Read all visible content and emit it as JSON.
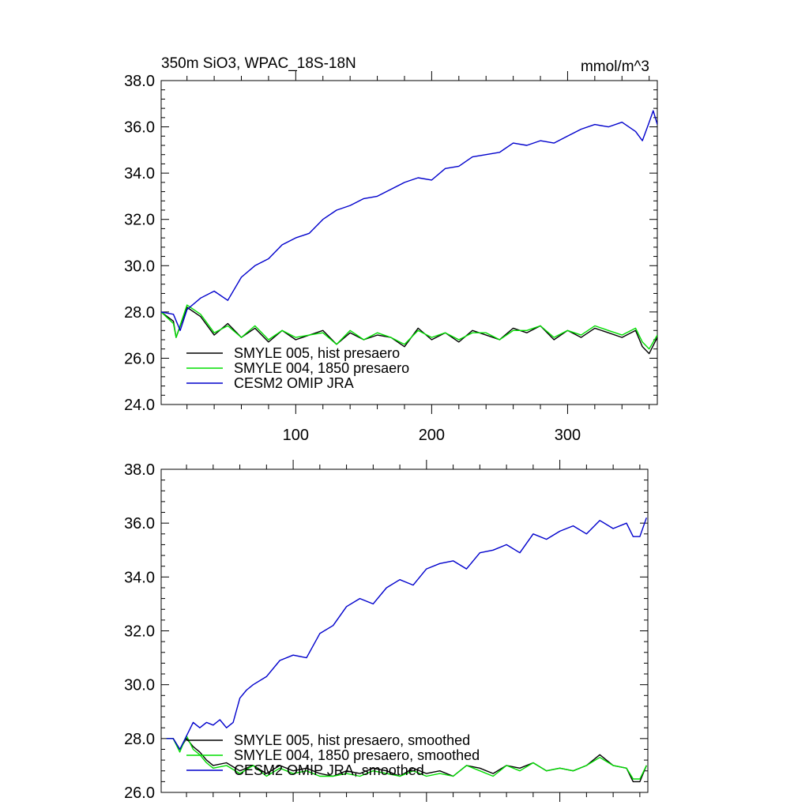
{
  "chart_data": [
    {
      "type": "line",
      "title": "350m SiO3, WPAC_18S-18N",
      "units": "mmol/m^3",
      "xlim": [
        1,
        366
      ],
      "ylim": [
        24,
        38
      ],
      "xticks": [
        100,
        200,
        300
      ],
      "xtick_labels": [
        "100",
        "200",
        "300"
      ],
      "yticks": [
        24,
        26,
        28,
        30,
        32,
        34,
        36,
        38
      ],
      "ytick_labels": [
        "24.0",
        "26.0",
        "28.0",
        "30.0",
        "32.0",
        "34.0",
        "36.0",
        "38.0"
      ],
      "grid": false,
      "legend_position": "bottom-left",
      "series": [
        {
          "name": "SMYLE 005, hist presaero",
          "color": "#000000",
          "x": [
            1,
            10,
            12,
            20,
            30,
            40,
            50,
            60,
            70,
            80,
            90,
            100,
            110,
            120,
            130,
            140,
            150,
            160,
            170,
            180,
            190,
            200,
            210,
            220,
            230,
            240,
            250,
            260,
            270,
            280,
            290,
            300,
            310,
            320,
            330,
            340,
            350,
            355,
            360,
            366
          ],
          "y": [
            28.0,
            27.6,
            26.9,
            28.2,
            27.8,
            27.0,
            27.5,
            26.9,
            27.3,
            26.7,
            27.2,
            26.8,
            27.0,
            27.2,
            26.6,
            27.1,
            26.8,
            27.0,
            26.9,
            26.5,
            27.3,
            26.8,
            27.1,
            26.7,
            27.2,
            27.0,
            26.8,
            27.3,
            27.1,
            27.4,
            26.8,
            27.2,
            26.9,
            27.3,
            27.1,
            26.9,
            27.2,
            26.5,
            26.2,
            26.9
          ]
        },
        {
          "name": "SMYLE 004, 1850 presaero",
          "color": "#00dd00",
          "x": [
            1,
            10,
            12,
            20,
            30,
            40,
            50,
            60,
            70,
            80,
            90,
            100,
            110,
            120,
            130,
            140,
            150,
            160,
            170,
            180,
            190,
            200,
            210,
            220,
            230,
            240,
            250,
            260,
            270,
            280,
            290,
            300,
            310,
            320,
            330,
            340,
            350,
            355,
            360,
            366
          ],
          "y": [
            28.0,
            27.5,
            26.9,
            28.3,
            27.9,
            27.1,
            27.4,
            26.9,
            27.4,
            26.8,
            27.2,
            26.9,
            27.0,
            27.1,
            26.6,
            27.2,
            26.8,
            27.1,
            26.9,
            26.6,
            27.2,
            26.9,
            27.1,
            26.8,
            27.1,
            27.1,
            26.8,
            27.2,
            27.2,
            27.4,
            26.9,
            27.2,
            27.0,
            27.4,
            27.2,
            27.0,
            27.3,
            26.7,
            26.4,
            27.0
          ]
        },
        {
          "name": "CESM2 OMIP JRA",
          "color": "#0000cc",
          "x": [
            1,
            10,
            15,
            20,
            30,
            40,
            50,
            60,
            70,
            80,
            90,
            100,
            110,
            120,
            130,
            140,
            150,
            160,
            170,
            180,
            190,
            200,
            210,
            220,
            230,
            240,
            250,
            260,
            270,
            280,
            290,
            300,
            310,
            320,
            330,
            340,
            350,
            355,
            360,
            363,
            366
          ],
          "y": [
            28.0,
            27.9,
            27.2,
            28.1,
            28.6,
            28.9,
            28.5,
            29.5,
            30.0,
            30.3,
            30.9,
            31.2,
            31.4,
            32.0,
            32.4,
            32.6,
            32.9,
            33.0,
            33.3,
            33.6,
            33.8,
            33.7,
            34.2,
            34.3,
            34.7,
            34.8,
            34.9,
            35.3,
            35.2,
            35.4,
            35.3,
            35.6,
            35.9,
            36.1,
            36.0,
            36.2,
            35.8,
            35.4,
            36.2,
            36.7,
            36.1
          ]
        }
      ]
    },
    {
      "type": "line",
      "xlim": [
        1,
        366
      ],
      "ylim": [
        26,
        38
      ],
      "xticks": [
        100,
        200,
        300
      ],
      "yticks": [
        26,
        28,
        30,
        32,
        34,
        36,
        38
      ],
      "ytick_labels": [
        "26.0",
        "28.0",
        "30.0",
        "32.0",
        "34.0",
        "36.0",
        "38.0"
      ],
      "grid": false,
      "legend_position": "bottom-left",
      "series": [
        {
          "name": "SMYLE 005, hist presaero, smoothed",
          "color": "#000000",
          "x": [
            5,
            10,
            15,
            20,
            25,
            30,
            35,
            40,
            50,
            60,
            70,
            80,
            90,
            100,
            110,
            120,
            130,
            140,
            150,
            160,
            170,
            180,
            190,
            200,
            210,
            220,
            230,
            240,
            250,
            260,
            270,
            280,
            290,
            300,
            310,
            320,
            330,
            340,
            350,
            355,
            360,
            365
          ],
          "y": [
            28.0,
            28.0,
            27.6,
            28.0,
            27.7,
            27.5,
            27.2,
            27.0,
            27.1,
            26.8,
            27.0,
            26.7,
            27.0,
            26.8,
            26.9,
            26.7,
            26.6,
            26.8,
            26.7,
            26.9,
            26.8,
            26.6,
            26.9,
            26.7,
            26.8,
            26.6,
            27.0,
            26.9,
            26.7,
            27.0,
            26.9,
            27.1,
            26.8,
            26.9,
            26.8,
            27.0,
            27.4,
            27.0,
            26.9,
            26.4,
            26.4,
            27.0
          ]
        },
        {
          "name": "SMYLE 004, 1850 presaero, smoothed",
          "color": "#00dd00",
          "x": [
            5,
            10,
            15,
            20,
            25,
            30,
            35,
            40,
            50,
            60,
            70,
            80,
            90,
            100,
            110,
            120,
            130,
            140,
            150,
            160,
            170,
            180,
            190,
            200,
            210,
            220,
            230,
            240,
            250,
            260,
            270,
            280,
            290,
            300,
            310,
            320,
            330,
            340,
            350,
            355,
            360,
            365
          ],
          "y": [
            28.0,
            28.0,
            27.5,
            28.1,
            27.6,
            27.4,
            27.1,
            26.9,
            27.0,
            26.7,
            27.0,
            26.6,
            26.9,
            26.7,
            26.8,
            26.6,
            26.6,
            26.7,
            26.6,
            26.8,
            26.7,
            26.6,
            26.8,
            26.6,
            26.7,
            26.6,
            27.0,
            26.8,
            26.6,
            27.0,
            26.8,
            27.1,
            26.8,
            26.9,
            26.8,
            27.0,
            27.3,
            27.0,
            26.9,
            26.5,
            26.5,
            27.0
          ]
        },
        {
          "name": "CESM2 OMIP JRA, smoothed",
          "color": "#0000cc",
          "x": [
            5,
            10,
            15,
            20,
            25,
            30,
            35,
            40,
            45,
            50,
            55,
            60,
            65,
            70,
            80,
            90,
            100,
            110,
            120,
            130,
            140,
            150,
            160,
            170,
            180,
            190,
            200,
            210,
            220,
            230,
            240,
            250,
            260,
            270,
            280,
            290,
            300,
            310,
            320,
            330,
            340,
            350,
            355,
            360,
            365
          ],
          "y": [
            28.0,
            28.0,
            27.6,
            28.1,
            28.6,
            28.4,
            28.6,
            28.5,
            28.7,
            28.4,
            28.6,
            29.5,
            29.8,
            30.0,
            30.3,
            30.9,
            31.1,
            31.0,
            31.9,
            32.2,
            32.9,
            33.2,
            33.0,
            33.6,
            33.9,
            33.7,
            34.3,
            34.5,
            34.6,
            34.3,
            34.9,
            35.0,
            35.2,
            34.9,
            35.6,
            35.4,
            35.7,
            35.9,
            35.6,
            36.1,
            35.8,
            36.0,
            35.5,
            35.5,
            36.2
          ]
        }
      ]
    }
  ]
}
